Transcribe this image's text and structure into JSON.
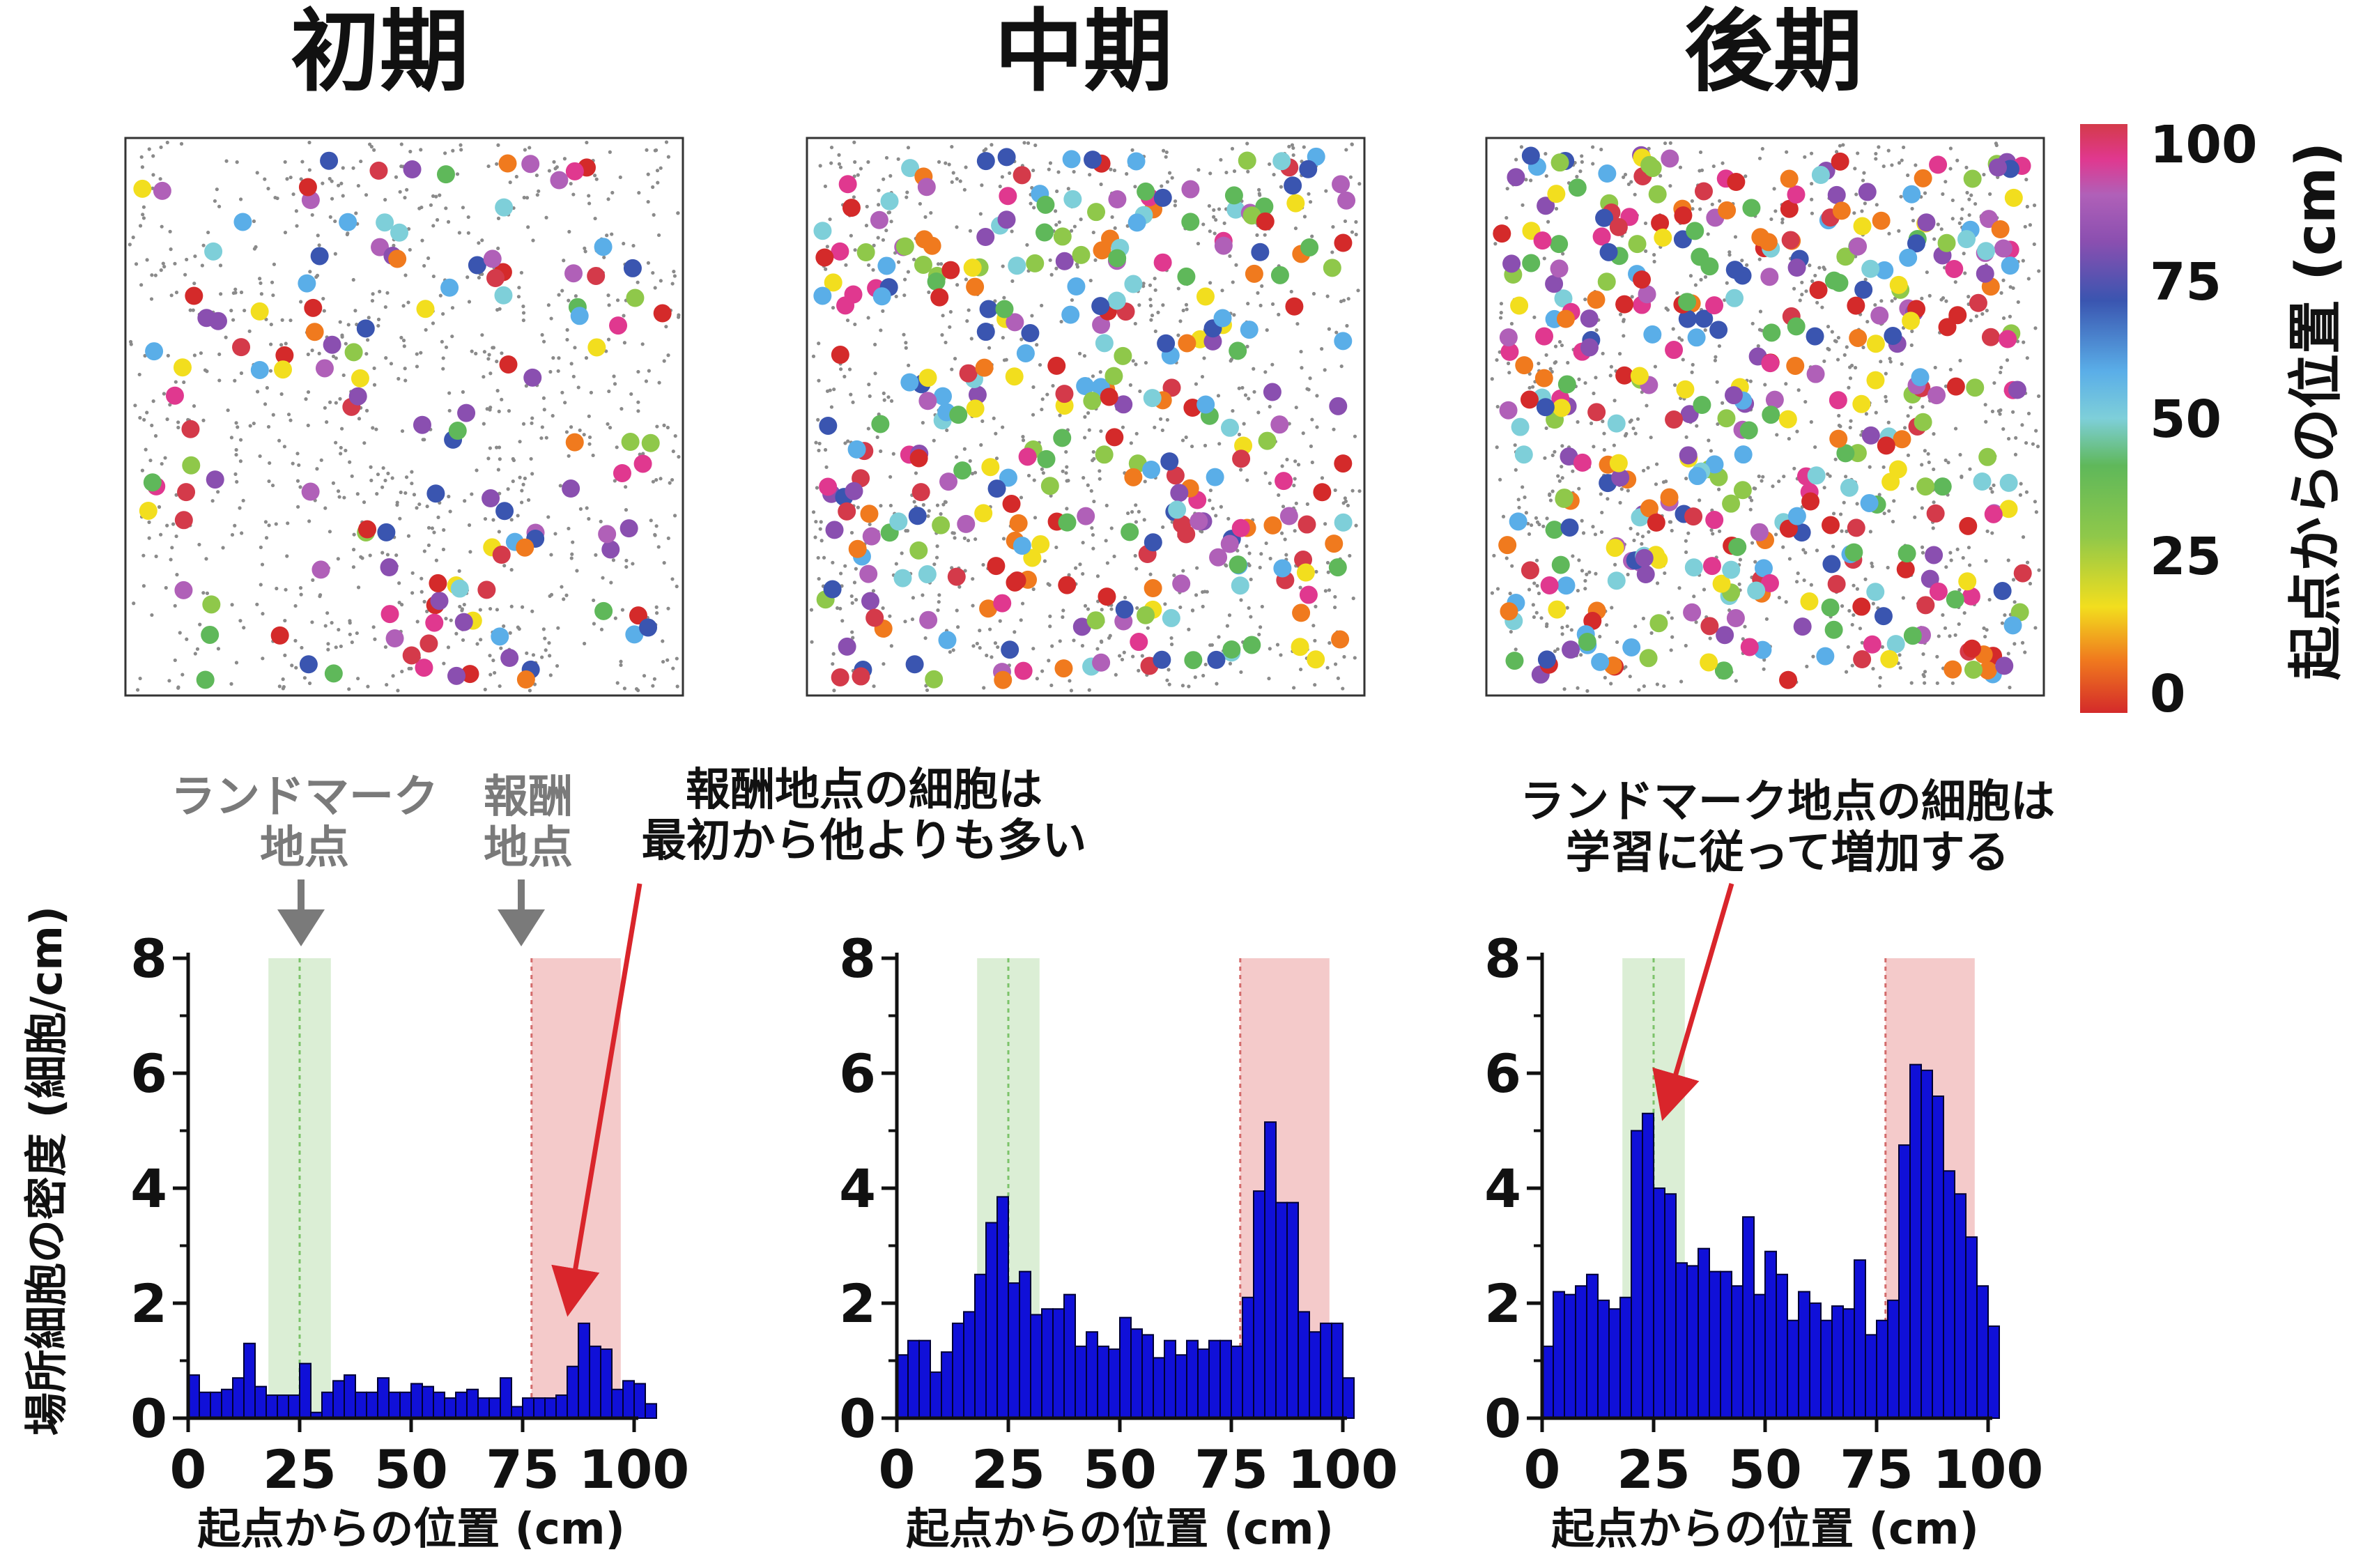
{
  "colors": {
    "bar_fill": "#1010d8",
    "bar_stroke": "#000033",
    "landmark_shade": "#dbeed5",
    "reward_shade": "#f4caca",
    "arrow_red": "#d9252b",
    "arrow_gray": "#7a7a7a",
    "colormap": [
      "#d42a2a",
      "#f07a1e",
      "#f2de1e",
      "#8fc84a",
      "#5fb85a",
      "#7ecfd9",
      "#5aaee8",
      "#3a55b0",
      "#8a4fb0",
      "#b060b8",
      "#e0388f",
      "#d43a4a"
    ]
  },
  "colorbar": {
    "title": "起点からの位置 (cm)",
    "ticks": [
      "100",
      "75",
      "50",
      "25",
      "0"
    ],
    "range": [
      0,
      100
    ]
  },
  "annotations": {
    "landmark_label": [
      "ランドマーク",
      "地点"
    ],
    "reward_label": [
      "報酬",
      "地点"
    ],
    "reward_note": [
      "報酬地点の細胞は",
      "最初から他よりも多い"
    ],
    "landmark_note": [
      "ランドマーク地点の細胞は",
      "学習に従って増加する"
    ]
  },
  "chart_data": [
    {
      "type": "scatter",
      "title": "初期",
      "description_kind": "place-cell map colored by preferred position",
      "dot_count": 130,
      "seed": 11
    },
    {
      "type": "scatter",
      "title": "中期",
      "description_kind": "place-cell map colored by preferred position",
      "dot_count": 300,
      "seed": 23
    },
    {
      "type": "scatter",
      "title": "後期",
      "description_kind": "place-cell map colored by preferred position",
      "dot_count": 380,
      "seed": 37
    },
    {
      "type": "bar",
      "panel": "初期",
      "xlabel": "起点からの位置 (cm)",
      "ylabel": "場所細胞の密度 (細胞/cm)",
      "xlim": [
        0,
        100
      ],
      "ylim": [
        0,
        8
      ],
      "xticks": [
        "0",
        "25",
        "50",
        "75",
        "100"
      ],
      "yticks": [
        "0",
        "2",
        "4",
        "6",
        "8"
      ],
      "bin_width_cm": 2.5,
      "landmark_zone": [
        18,
        32
      ],
      "landmark_center": 25,
      "reward_zone": [
        77,
        97
      ],
      "values": [
        0.75,
        0.45,
        0.45,
        0.5,
        0.7,
        1.3,
        0.55,
        0.4,
        0.4,
        0.4,
        0.95,
        0.1,
        0.45,
        0.65,
        0.75,
        0.45,
        0.45,
        0.7,
        0.45,
        0.45,
        0.6,
        0.55,
        0.45,
        0.35,
        0.45,
        0.5,
        0.35,
        0.35,
        0.7,
        0.2,
        0.35,
        0.35,
        0.35,
        0.4,
        0.9,
        1.65,
        1.25,
        1.2,
        0.5,
        0.65,
        0.6,
        0.25
      ]
    },
    {
      "type": "bar",
      "panel": "中期",
      "xlabel": "起点からの位置 (cm)",
      "ylabel": "",
      "xlim": [
        0,
        100
      ],
      "ylim": [
        0,
        8
      ],
      "xticks": [
        "0",
        "25",
        "50",
        "75",
        "100"
      ],
      "yticks": [
        "0",
        "2",
        "4",
        "6",
        "8"
      ],
      "bin_width_cm": 2.5,
      "landmark_zone": [
        18,
        32
      ],
      "landmark_center": 25,
      "reward_zone": [
        77,
        97
      ],
      "values": [
        1.1,
        1.35,
        1.35,
        0.8,
        1.15,
        1.65,
        1.85,
        2.5,
        3.4,
        3.85,
        2.35,
        2.55,
        1.8,
        1.9,
        1.9,
        2.15,
        1.25,
        1.5,
        1.25,
        1.2,
        1.75,
        1.55,
        1.45,
        1.05,
        1.35,
        1.1,
        1.35,
        1.2,
        1.35,
        1.35,
        1.25,
        2.1,
        3.95,
        5.15,
        3.75,
        3.75,
        1.85,
        1.5,
        1.65,
        1.65,
        0.7
      ]
    },
    {
      "type": "bar",
      "panel": "後期",
      "xlabel": "起点からの位置 (cm)",
      "ylabel": "",
      "xlim": [
        0,
        100
      ],
      "ylim": [
        0,
        8
      ],
      "xticks": [
        "0",
        "25",
        "50",
        "75",
        "100"
      ],
      "yticks": [
        "0",
        "2",
        "4",
        "6",
        "8"
      ],
      "bin_width_cm": 2.5,
      "landmark_zone": [
        18,
        32
      ],
      "landmark_center": 25,
      "reward_zone": [
        77,
        97
      ],
      "values": [
        1.25,
        2.2,
        2.15,
        2.3,
        2.5,
        2.05,
        1.9,
        2.1,
        5.0,
        5.3,
        4.0,
        3.9,
        2.7,
        2.65,
        2.95,
        2.55,
        2.55,
        2.3,
        3.5,
        2.15,
        2.9,
        2.5,
        1.7,
        2.2,
        2.0,
        1.7,
        1.95,
        1.9,
        2.75,
        1.45,
        1.7,
        2.05,
        4.75,
        6.15,
        6.05,
        5.6,
        4.3,
        3.9,
        3.15,
        2.3,
        1.6
      ]
    }
  ]
}
